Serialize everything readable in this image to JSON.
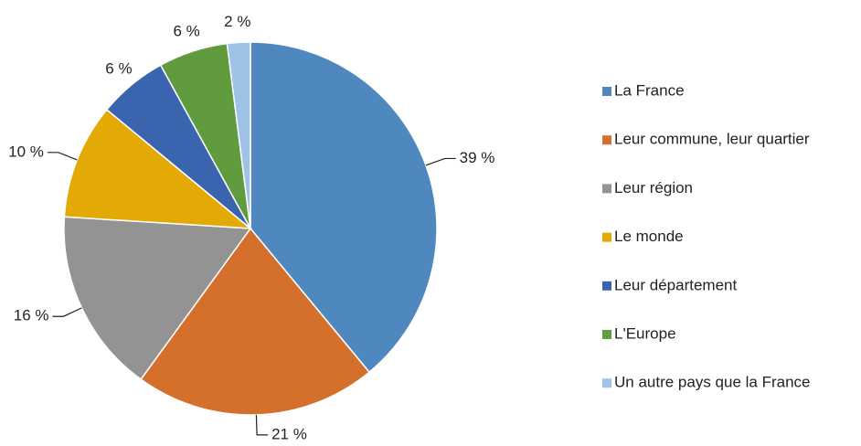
{
  "chart_data": {
    "type": "pie",
    "categories": [
      "La France",
      "Leur commune, leur quartier",
      "Leur région",
      "Le monde",
      "Leur département",
      "L'Europe",
      "Un autre pays que la France"
    ],
    "values": [
      39,
      21,
      16,
      10,
      6,
      6,
      2
    ],
    "value_labels": [
      "39 %",
      "21 %",
      "16 %",
      "10 %",
      "6 %",
      "6 %",
      "2 %"
    ],
    "colors": [
      "#4e88bf",
      "#d4702c",
      "#939393",
      "#e3aa06",
      "#3b64af",
      "#609b3d",
      "#9fc3e7"
    ],
    "legend": "right"
  }
}
